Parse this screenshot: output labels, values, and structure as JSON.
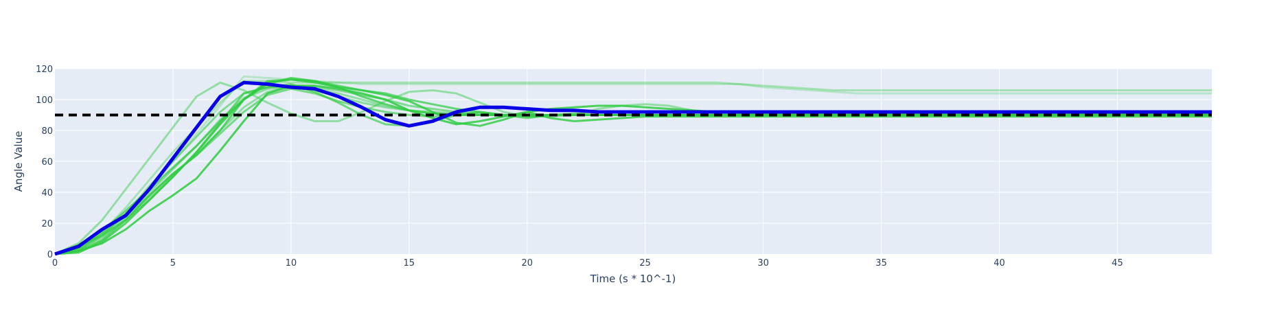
{
  "chart_data": {
    "type": "line",
    "xlabel": "Time (s * 10^-1)",
    "ylabel": "Angle Value",
    "xlim": [
      0,
      49
    ],
    "ylim": [
      0,
      120
    ],
    "xticks": [
      0,
      5,
      10,
      15,
      20,
      25,
      30,
      35,
      40,
      45
    ],
    "yticks": [
      0,
      20,
      40,
      60,
      80,
      100,
      120
    ],
    "grid": true,
    "plot_background": "#e5ecf6",
    "reference": {
      "y": 90,
      "color": "#000000",
      "style": "dashed"
    },
    "x": [
      0,
      1,
      2,
      3,
      4,
      5,
      6,
      7,
      8,
      9,
      10,
      11,
      12,
      13,
      14,
      15,
      16,
      17,
      18,
      19,
      20,
      21,
      22,
      23,
      24,
      25,
      26,
      27,
      28,
      29,
      30,
      31,
      32,
      33,
      34,
      35,
      36,
      37,
      38,
      39,
      40,
      41,
      42,
      43,
      44,
      45,
      46,
      47,
      48,
      49
    ],
    "background_series": [
      {
        "color": "#2ecc40",
        "opacity": 0.45,
        "values": [
          0,
          7,
          22,
          42,
          62,
          82,
          102,
          111,
          106,
          98,
          91,
          86,
          86,
          92,
          99,
          105,
          106,
          104,
          98,
          92,
          89,
          89,
          90,
          94,
          96,
          97,
          96,
          93,
          91,
          90,
          90,
          90,
          90,
          90,
          90,
          90,
          90,
          90,
          90,
          90,
          90,
          90,
          90,
          90,
          90,
          90,
          90,
          90,
          90,
          90
        ]
      },
      {
        "color": "#2ecc40",
        "opacity": 0.75,
        "values": [
          0,
          2,
          9,
          22,
          38,
          52,
          64,
          80,
          100,
          110,
          114,
          112,
          108,
          102,
          97,
          93,
          91,
          90,
          90,
          90,
          90,
          90,
          90,
          90,
          90,
          90,
          90,
          90,
          90,
          90,
          90,
          90,
          90,
          90,
          90,
          90,
          90,
          90,
          90,
          90,
          90,
          90,
          90,
          90,
          90,
          90,
          90,
          90,
          90,
          90
        ]
      },
      {
        "color": "#2ecc40",
        "opacity": 0.65,
        "values": [
          0,
          5,
          12,
          22,
          35,
          50,
          66,
          85,
          104,
          108,
          110,
          105,
          98,
          90,
          84,
          83,
          86,
          90,
          92,
          90,
          88,
          90,
          91,
          90,
          90,
          90,
          90,
          90,
          90,
          90,
          90,
          90,
          90,
          90,
          90,
          90,
          90,
          90,
          90,
          90,
          90,
          90,
          90,
          90,
          90,
          90,
          90,
          90,
          90,
          90
        ]
      },
      {
        "color": "#2ecc40",
        "opacity": 0.8,
        "values": [
          0,
          1,
          8,
          20,
          35,
          50,
          66,
          84,
          100,
          111,
          113,
          111,
          108,
          106,
          103,
          99,
          92,
          85,
          83,
          87,
          92,
          88,
          86,
          87,
          88,
          89,
          89,
          89,
          89,
          89,
          89,
          89,
          89,
          89,
          89,
          89,
          89,
          89,
          89,
          89,
          89,
          89,
          89,
          89,
          89,
          89,
          89,
          89,
          89,
          89
        ]
      },
      {
        "color": "#2ecc40",
        "opacity": 0.7,
        "values": [
          0,
          6,
          15,
          28,
          42,
          56,
          70,
          86,
          100,
          112,
          113,
          112,
          109,
          106,
          104,
          100,
          97,
          94,
          92,
          90,
          89,
          90,
          90,
          90,
          90,
          90,
          90,
          90,
          90,
          90,
          90,
          90,
          90,
          90,
          90,
          90,
          90,
          90,
          90,
          90,
          90,
          90,
          90,
          90,
          90,
          90,
          90,
          90,
          90,
          90
        ]
      },
      {
        "color": "#2ecc40",
        "opacity": 0.85,
        "values": [
          0,
          2,
          7,
          16,
          28,
          38,
          49,
          67,
          86,
          104,
          109,
          109,
          107,
          104,
          100,
          93,
          88,
          84,
          86,
          89,
          92,
          94,
          95,
          96,
          96,
          95,
          94,
          93,
          92,
          91,
          91,
          91,
          91,
          91,
          91,
          91,
          91,
          91,
          91,
          91,
          91,
          91,
          91,
          91,
          91,
          91,
          91,
          91,
          91,
          91
        ]
      },
      {
        "color": "#2ecc40",
        "opacity": 0.35,
        "values": [
          0,
          4,
          14,
          30,
          48,
          66,
          82,
          98,
          112,
          112,
          111,
          111,
          111,
          111,
          111,
          111,
          111,
          111,
          111,
          111,
          111,
          111,
          111,
          111,
          111,
          111,
          111,
          111,
          111,
          110,
          109,
          108,
          107,
          106,
          106,
          106,
          106,
          106,
          106,
          106,
          106,
          106,
          106,
          106,
          106,
          106,
          106,
          106,
          106,
          106
        ]
      },
      {
        "color": "#2ecc40",
        "opacity": 0.25,
        "values": [
          0,
          3,
          10,
          24,
          42,
          60,
          78,
          96,
          115,
          114,
          113,
          112,
          111,
          110,
          110,
          110,
          110,
          110,
          110,
          110,
          110,
          110,
          110,
          110,
          110,
          110,
          110,
          110,
          110,
          110,
          108,
          107,
          106,
          105,
          104,
          104,
          104,
          104,
          104,
          104,
          104,
          104,
          104,
          104,
          104,
          104,
          104,
          104,
          104,
          104
        ]
      },
      {
        "color": "#2ecc40",
        "opacity": 0.55,
        "values": [
          0,
          3,
          12,
          26,
          44,
          60,
          76,
          92,
          104,
          108,
          109,
          108,
          106,
          103,
          100,
          96,
          94,
          92,
          91,
          90,
          90,
          90,
          90,
          90,
          90,
          90,
          90,
          90,
          90,
          90,
          90,
          90,
          90,
          90,
          90,
          90,
          90,
          90,
          90,
          90,
          90,
          90,
          90,
          90,
          90,
          90,
          90,
          90,
          90,
          90
        ]
      },
      {
        "color": "#2ecc40",
        "opacity": 0.6,
        "values": [
          0,
          4,
          13,
          25,
          38,
          52,
          64,
          78,
          92,
          103,
          107,
          104,
          99,
          95,
          92,
          90,
          89,
          90,
          90,
          90,
          90,
          90,
          90,
          90,
          90,
          90,
          90,
          90,
          90,
          90,
          90,
          90,
          90,
          90,
          90,
          90,
          90,
          90,
          90,
          90,
          90,
          90,
          90,
          90,
          90,
          90,
          90,
          90,
          90,
          90
        ]
      },
      {
        "color": "#2ecc40",
        "opacity": 0.5,
        "values": [
          0,
          5,
          14,
          26,
          40,
          55,
          70,
          87,
          101,
          107,
          108,
          106,
          102,
          98,
          95,
          93,
          92,
          91,
          90,
          90,
          90,
          90,
          90,
          90,
          90,
          90,
          90,
          90,
          90,
          90,
          90,
          90,
          90,
          90,
          90,
          90,
          90,
          90,
          90,
          90,
          90,
          90,
          90,
          90,
          90,
          90,
          90,
          90,
          90,
          90
        ]
      },
      {
        "color": "#2ecc40",
        "opacity": 0.45,
        "values": [
          0,
          3,
          11,
          23,
          37,
          51,
          65,
          80,
          95,
          105,
          108,
          107,
          104,
          100,
          96,
          93,
          91,
          90,
          90,
          90,
          90,
          90,
          90,
          90,
          90,
          90,
          90,
          90,
          90,
          90,
          90,
          90,
          90,
          90,
          90,
          90,
          90,
          90,
          90,
          90,
          90,
          90,
          90,
          90,
          90,
          90,
          90,
          90,
          90,
          90
        ]
      }
    ],
    "main_series": {
      "color": "#0a00e6",
      "values": [
        0,
        5,
        16,
        25,
        42,
        62,
        82,
        102,
        111,
        110,
        108,
        107,
        102,
        95,
        87,
        83,
        86,
        92,
        95,
        95,
        94,
        93,
        93,
        92,
        92,
        92,
        92,
        92,
        92,
        92,
        92,
        92,
        92,
        92,
        92,
        92,
        92,
        92,
        92,
        92,
        92,
        92,
        92,
        92,
        92,
        92,
        92,
        92,
        92,
        92
      ]
    }
  }
}
